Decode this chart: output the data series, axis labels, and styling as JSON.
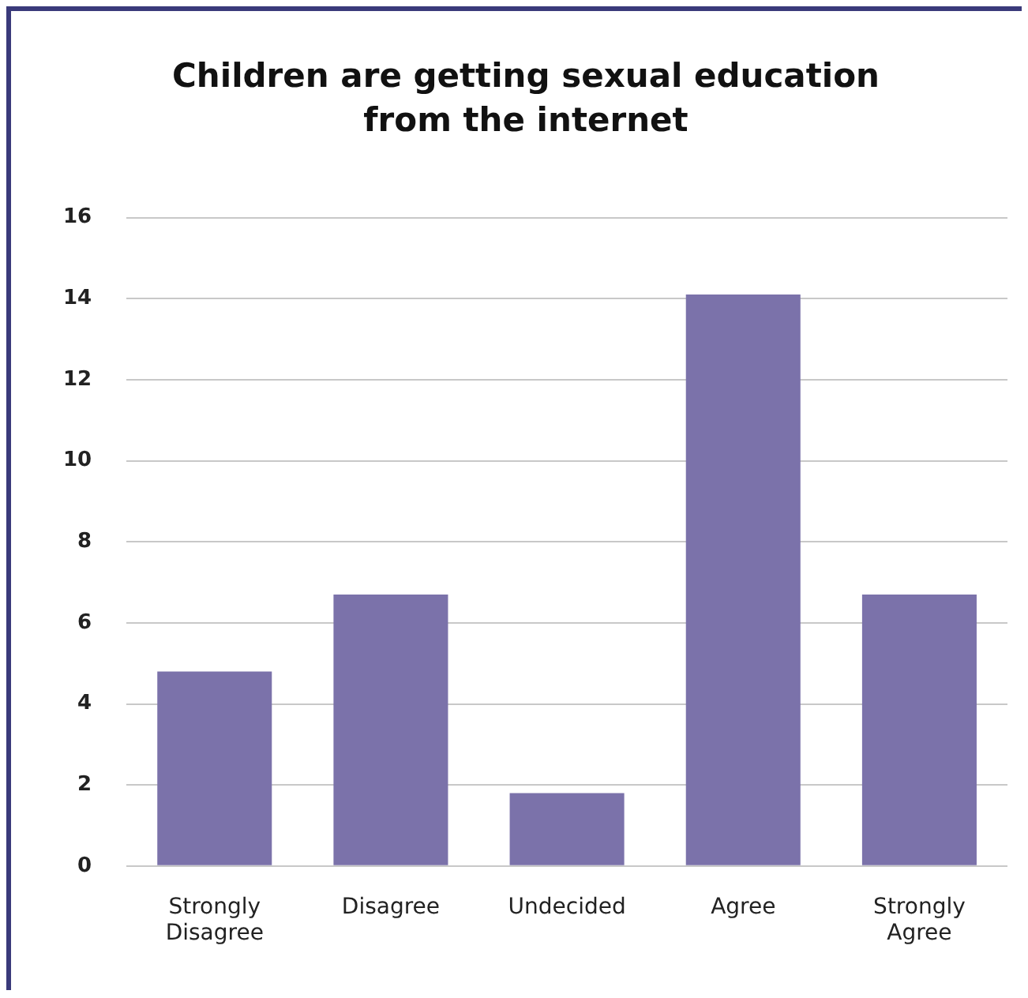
{
  "chart_data": {
    "type": "bar",
    "title": "Children are getting sexual education from the internet",
    "categories": [
      "Strongly Disagree",
      "Disagree",
      "Undecided",
      "Agree",
      "Strongly Agree"
    ],
    "values": [
      4.8,
      6.7,
      1.8,
      14.1,
      6.7
    ],
    "color": "#7b72aa",
    "ylim": [
      0,
      16
    ],
    "yticks": [
      0,
      2,
      4,
      6,
      8,
      10,
      12,
      14,
      16
    ],
    "grid": "y"
  }
}
